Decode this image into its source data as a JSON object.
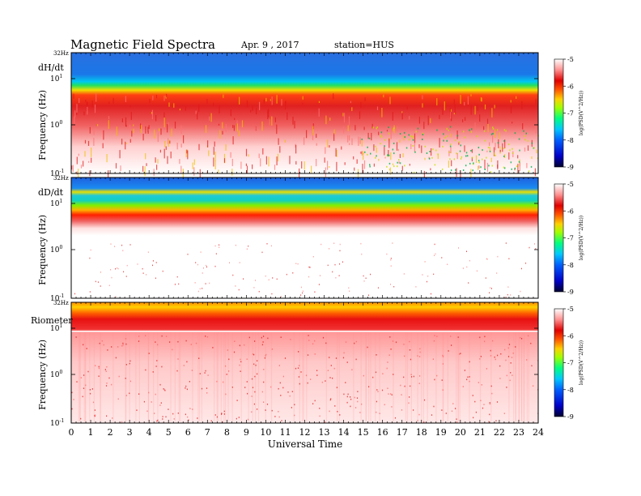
{
  "header": {
    "title": "Magnetic  Field  Spectra",
    "date": "Apr. 9  , 2017",
    "station": "station=HUS"
  },
  "chart_data": {
    "type": "heatmap",
    "xlabel": "Universal Time",
    "x_ticks": [
      0,
      1,
      2,
      3,
      4,
      5,
      6,
      7,
      8,
      9,
      10,
      11,
      12,
      13,
      14,
      15,
      16,
      17,
      18,
      19,
      20,
      21,
      22,
      23,
      24
    ],
    "xlim": [
      0,
      24
    ],
    "panels": [
      {
        "label": "dH/dt",
        "ylabel": "Frequency  (Hz)",
        "top_label": "32Hz",
        "yscale": "log",
        "y_ticks": [
          {
            "base": "10",
            "exp": "1"
          },
          {
            "base": "10",
            "exp": "0"
          },
          {
            "base": "10",
            "exp": "-1"
          }
        ],
        "colorbar": {
          "ticks": [
            "-5",
            "-6",
            "-7",
            "-8",
            "-9"
          ],
          "label": "log(PSD(V^2/Hz))"
        }
      },
      {
        "label": "dD/dt",
        "ylabel": "Frequency  (Hz)",
        "top_label": "32Hz",
        "yscale": "log",
        "y_ticks": [
          {
            "base": "10",
            "exp": "1"
          },
          {
            "base": "10",
            "exp": "0"
          },
          {
            "base": "10",
            "exp": "-1"
          }
        ],
        "colorbar": {
          "ticks": [
            "-5",
            "-6",
            "-7",
            "-8",
            "-9"
          ],
          "label": "log(PSD(V^2/Hz))"
        }
      },
      {
        "label": "Riometer",
        "ylabel": "Frequency  (Hz)",
        "top_label": "32Hz",
        "yscale": "log",
        "y_ticks": [
          {
            "base": "10",
            "exp": "1"
          },
          {
            "base": "10",
            "exp": "0"
          },
          {
            "base": "10",
            "exp": "-1"
          }
        ],
        "colorbar": {
          "ticks": [
            "-5",
            "-6",
            "-7",
            "-8",
            "-9"
          ],
          "label": "log(PSD(V^2/Hz))"
        }
      }
    ],
    "colormap": [
      "#000000",
      "#0000c8",
      "#0064ff",
      "#00c8ff",
      "#00ff64",
      "#c8ff00",
      "#ffc800",
      "#ff4000",
      "#e00000",
      "#ff9090",
      "#ffffff"
    ]
  }
}
